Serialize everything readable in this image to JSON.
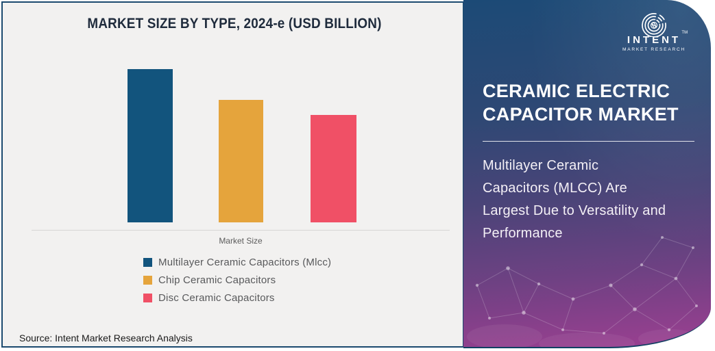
{
  "chart_panel": {
    "title": "MARKET SIZE BY TYPE, 2024-e (USD BILLION)",
    "x_axis_label": "Market Size",
    "source": "Source: Intent Market Research Analysis",
    "background_color": "#F2F1F0",
    "border_color": "#1A496E"
  },
  "chart_data": {
    "type": "bar",
    "title": "MARKET SIZE BY TYPE, 2024-e (USD BILLION)",
    "x_categories": [
      "Market Size"
    ],
    "series": [
      {
        "name": "Multilayer Ceramic Capacitors (Mlcc)",
        "values_relative": [
          100
        ],
        "color": "#12547D"
      },
      {
        "name": "Chip Ceramic Capacitors",
        "values_relative": [
          80
        ],
        "color": "#E5A43C"
      },
      {
        "name": "Disc Ceramic Capacitors",
        "values_relative": [
          70
        ],
        "color": "#F05066"
      }
    ],
    "value_axis": {
      "visible": false,
      "note": "no numeric ticks or data labels shown; values are relative bar heights with tallest = 100"
    },
    "grid": false,
    "legend_position": "bottom-left",
    "xlabel": "Market Size",
    "ylabel": ""
  },
  "info_panel": {
    "logo": {
      "name": "INTENT",
      "tm": "TM",
      "tagline": "MARKET RESEARCH"
    },
    "heading_lines": [
      "CERAMIC ELECTRIC",
      "CAPACITOR MARKET"
    ],
    "heading_text": "CERAMIC ELECTRIC CAPACITOR MARKET",
    "subheading_lines": [
      "Multilayer Ceramic",
      "Capacitors (MLCC) Are",
      "Largest Due to Versatility and",
      "Performance"
    ],
    "subheading_text": "Multilayer Ceramic Capacitors (MLCC) Are Largest Due to Versatility and Performance",
    "colors": {
      "gradient_top": "#1C4A76",
      "gradient_middle": "#4A4478",
      "gradient_bottom": "#9C3F91",
      "text": "#FFFFFF"
    }
  }
}
